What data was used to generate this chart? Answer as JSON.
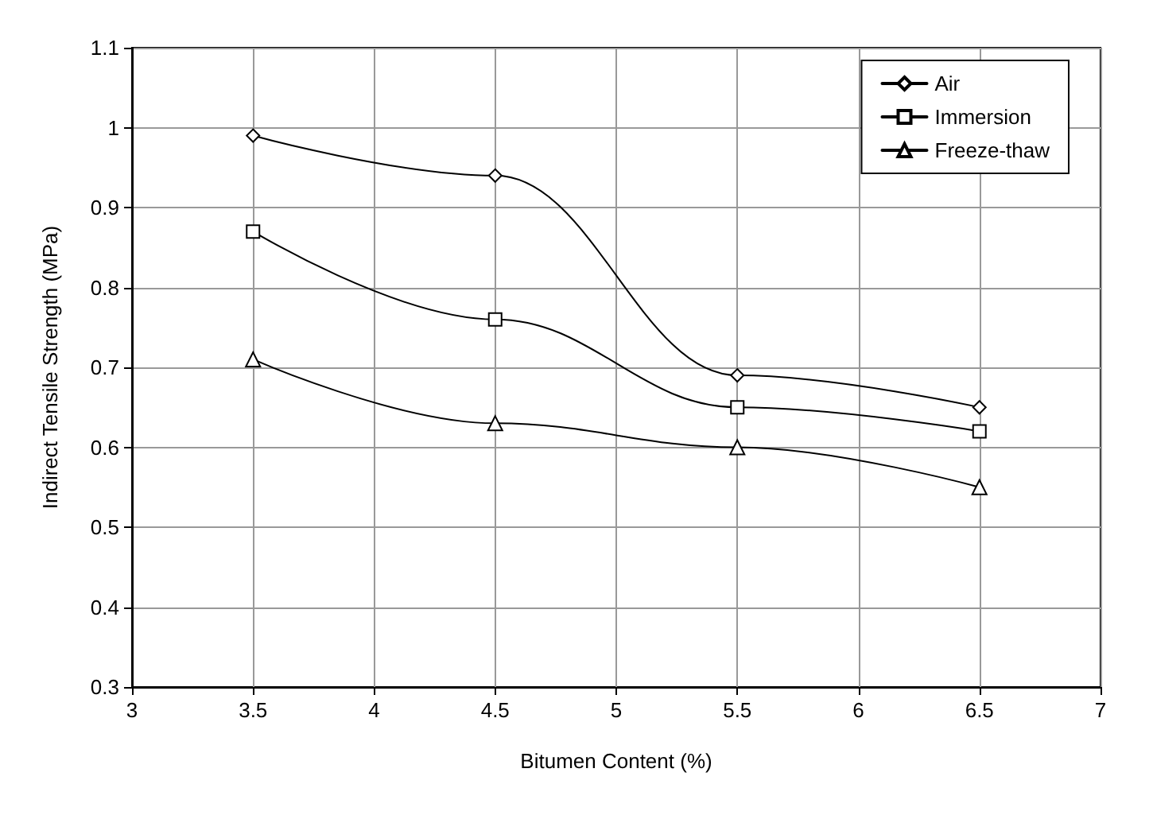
{
  "chart_data": {
    "type": "line",
    "xlabel": "Bitumen Content (%)",
    "ylabel": "Indirect Tensile Strength (MPa)",
    "x": [
      3.5,
      4.5,
      5.5,
      6.5
    ],
    "series": [
      {
        "name": "Air",
        "color": "#000000",
        "marker": "diamond",
        "values": [
          0.99,
          0.94,
          0.69,
          0.65
        ]
      },
      {
        "name": "Immersion",
        "color": "#000000",
        "marker": "square",
        "values": [
          0.87,
          0.76,
          0.65,
          0.62
        ]
      },
      {
        "name": "Freeze-thaw",
        "color": "#000000",
        "marker": "triangle",
        "values": [
          0.71,
          0.63,
          0.6,
          0.55
        ]
      }
    ],
    "xlim": [
      3,
      7
    ],
    "xticks": [
      3,
      3.5,
      4,
      4.5,
      5,
      5.5,
      6,
      6.5,
      7
    ],
    "ylim": [
      0.3,
      1.1
    ],
    "yticks": [
      0.3,
      0.4,
      0.5,
      0.6,
      0.7,
      0.8,
      0.9,
      1,
      1.1
    ],
    "grid": true,
    "legend": "top right",
    "line_style": "solid"
  }
}
